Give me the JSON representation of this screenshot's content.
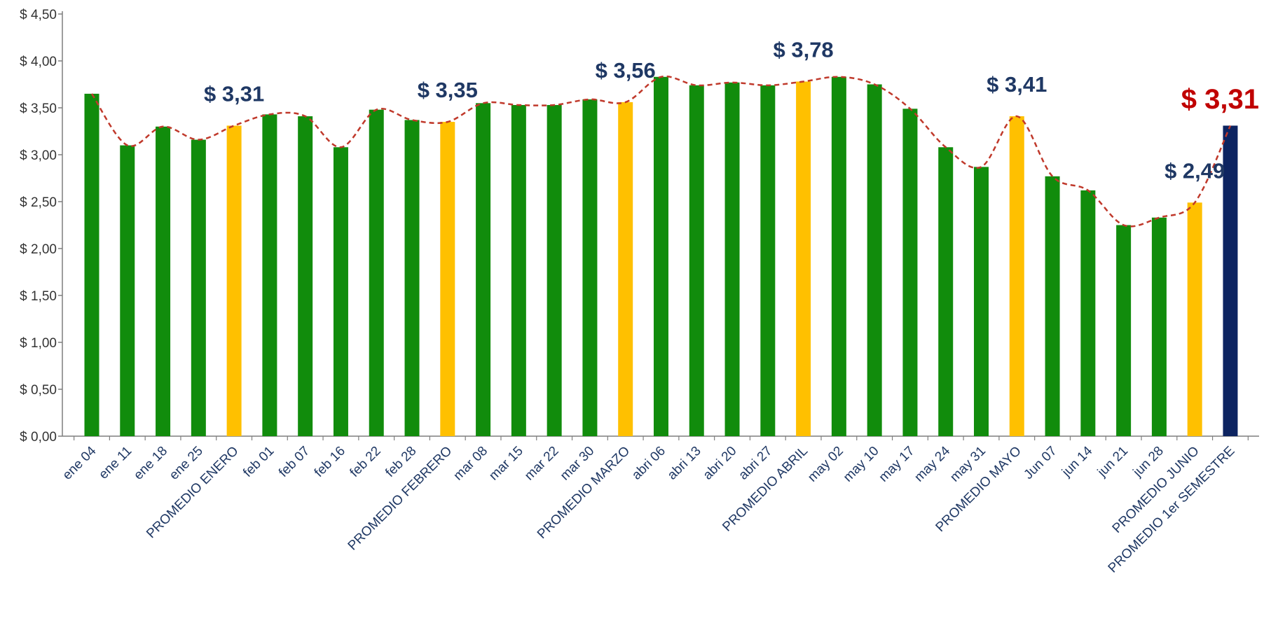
{
  "chart_data": {
    "type": "bar",
    "title": "",
    "xlabel": "",
    "ylabel": "",
    "ylim": [
      0,
      4.5
    ],
    "yticks": [
      "$ 0,00",
      "$ 0,50",
      "$ 1,00",
      "$ 1,50",
      "$ 2,00",
      "$ 2,50",
      "$ 3,00",
      "$ 3,50",
      "$ 4,00",
      "$ 4,50"
    ],
    "ytick_values": [
      0,
      0.5,
      1,
      1.5,
      2,
      2.5,
      3,
      3.5,
      4,
      4.5
    ],
    "grid": false,
    "legend": "none",
    "categories": [
      "ene 04",
      "ene 11",
      "ene 18",
      "ene 25",
      "PROMEDIO ENERO",
      "feb 01",
      "feb 07",
      "feb 16",
      "feb 22",
      "feb 28",
      "PROMEDIO FEBRERO",
      "mar 08",
      "mar 15",
      "mar 22",
      "mar 30",
      "PROMEDIO MARZO",
      "abri 06",
      "abri 13",
      "abri 20",
      "abri 27",
      "PROMEDIO ABRIL",
      "may 02",
      "may 10",
      "may 17",
      "may 24",
      "may 31",
      "PROMEDIO MAYO",
      "Jun 07",
      "jun 14",
      "jun 21",
      "jun 28",
      "PROMEDIO JUNIO",
      "PROMEDIO 1er SEMESTRE"
    ],
    "values": [
      3.65,
      3.1,
      3.3,
      3.16,
      3.31,
      3.43,
      3.41,
      3.08,
      3.48,
      3.37,
      3.35,
      3.55,
      3.53,
      3.53,
      3.59,
      3.56,
      3.83,
      3.74,
      3.77,
      3.74,
      3.78,
      3.83,
      3.75,
      3.49,
      3.08,
      2.87,
      3.41,
      2.77,
      2.62,
      2.25,
      2.33,
      2.49,
      3.31
    ],
    "bar_kinds": [
      "week",
      "week",
      "week",
      "week",
      "month",
      "week",
      "week",
      "week",
      "week",
      "week",
      "month",
      "week",
      "week",
      "week",
      "week",
      "month",
      "week",
      "week",
      "week",
      "week",
      "month",
      "week",
      "week",
      "week",
      "week",
      "week",
      "month",
      "week",
      "week",
      "week",
      "week",
      "month",
      "semester"
    ],
    "data_labels": [
      {
        "index": 4,
        "text": "$ 3,31"
      },
      {
        "index": 10,
        "text": "$ 3,35"
      },
      {
        "index": 15,
        "text": "$ 3,56"
      },
      {
        "index": 20,
        "text": "$ 3,78"
      },
      {
        "index": 26,
        "text": "$ 3,41"
      },
      {
        "index": 31,
        "text": "$ 2,49"
      },
      {
        "index": 32,
        "text": "$ 3,31"
      }
    ],
    "colors": {
      "week": "#118c0c",
      "month": "#ffc000",
      "semester": "#0d2461",
      "trend_line": "#c0392b",
      "axis": "#7f7f7f",
      "label": "#1f3864",
      "final_label": "#c00000"
    },
    "trend_line": {
      "style": "dashed",
      "smooth": true
    }
  }
}
